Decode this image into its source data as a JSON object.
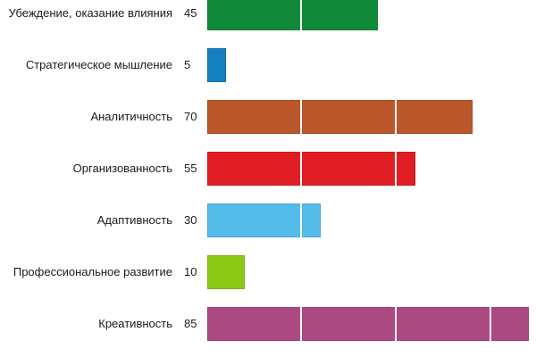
{
  "chart_data": {
    "type": "bar",
    "orientation": "horizontal",
    "title": "",
    "xlabel": "",
    "ylabel": "",
    "categories": [
      "Убеждение, оказание влияния",
      "Стратегическое мышление",
      "Аналитичность",
      "Организованность",
      "Адаптивность",
      "Профессиональное развитие",
      "Креативность"
    ],
    "values": [
      45,
      5,
      70,
      55,
      30,
      10,
      85
    ],
    "colors": [
      "#108a38",
      "#1580c0",
      "#bb572a",
      "#e11d24",
      "#53bce9",
      "#8cc814",
      "#ab4a82"
    ],
    "xlim": [
      0,
      85
    ],
    "grid_interval": 25,
    "grid": "white separators inside bars",
    "legend": "none",
    "data_labels": "value shown left of each bar"
  },
  "rows": [
    {
      "label": "Убеждение, оказание влияния",
      "value": "45"
    },
    {
      "label": "Стратегическое мышление",
      "value": "5"
    },
    {
      "label": "Аналитичность",
      "value": "70"
    },
    {
      "label": "Организованность",
      "value": "55"
    },
    {
      "label": "Адаптивность",
      "value": "30"
    },
    {
      "label": "Профессиональное развитие",
      "value": "10"
    },
    {
      "label": "Креативность",
      "value": "85"
    }
  ]
}
